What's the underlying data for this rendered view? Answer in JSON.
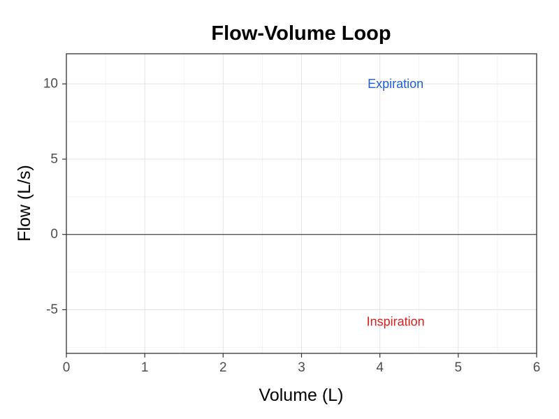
{
  "chart_data": {
    "type": "line",
    "title": "Flow-Volume Loop",
    "xlabel": "Volume (L)",
    "ylabel": "Flow (L/s)",
    "xlim": [
      0,
      6
    ],
    "ylim": [
      -7.9,
      12
    ],
    "x_ticks": [
      0,
      1,
      2,
      3,
      4,
      5,
      6
    ],
    "x_tick_labels": [
      "0",
      "1",
      "2",
      "3",
      "4",
      "5",
      "6"
    ],
    "y_ticks": [
      -5,
      0,
      5,
      10
    ],
    "y_tick_labels": [
      "-5",
      "0",
      "5",
      "10"
    ],
    "grid": true,
    "series": [],
    "reference_lines": [
      {
        "axis": "y",
        "value": 0
      }
    ],
    "annotations": [
      {
        "text": "Expiration",
        "x": 4.2,
        "y": 10,
        "color": "#1f5fd6"
      },
      {
        "text": "Inspiration",
        "x": 4.2,
        "y": -5.8,
        "color": "#d62020"
      }
    ]
  }
}
